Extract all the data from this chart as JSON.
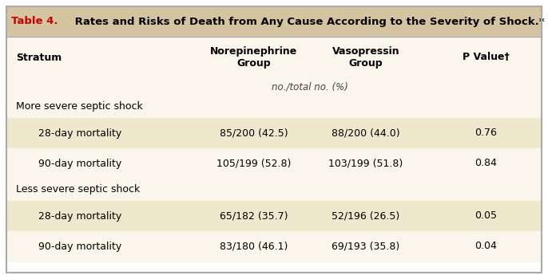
{
  "title_prefix": "Table 4.",
  "title_rest": " Rates and Risks of Death from Any Cause According to the Severity of Shock.*",
  "title_color_prefix": "#cc0000",
  "title_color_rest": "#000000",
  "title_bg": "#d4c5a0",
  "body_bg": "#faf6ec",
  "row_bg_shaded": "#f0e8cc",
  "border_color": "#aaaaaa",
  "outer_bg": "#ffffff",
  "col_headers": [
    "Stratum",
    "Norepinephrine\nGroup",
    "Vasopressin\nGroup",
    "P Value†"
  ],
  "subheader": "no./total no. (%)",
  "sections": [
    {
      "section_label": "More severe septic shock",
      "rows": [
        {
          "label": "28-day mortality",
          "nor": "85/200 (42.5)",
          "vas": "88/200 (44.0)",
          "pval": "0.76",
          "shaded": true
        },
        {
          "label": "90-day mortality",
          "nor": "105/199 (52.8)",
          "vas": "103/199 (51.8)",
          "pval": "0.84",
          "shaded": false
        }
      ]
    },
    {
      "section_label": "Less severe septic shock",
      "rows": [
        {
          "label": "28-day mortality",
          "nor": "65/182 (35.7)",
          "vas": "52/196 (26.5)",
          "pval": "0.05",
          "shaded": true
        },
        {
          "label": "90-day mortality",
          "nor": "83/180 (46.1)",
          "vas": "69/193 (35.8)",
          "pval": "0.04",
          "shaded": false
        }
      ]
    }
  ],
  "font_size": 9.0,
  "title_font_size": 9.5
}
